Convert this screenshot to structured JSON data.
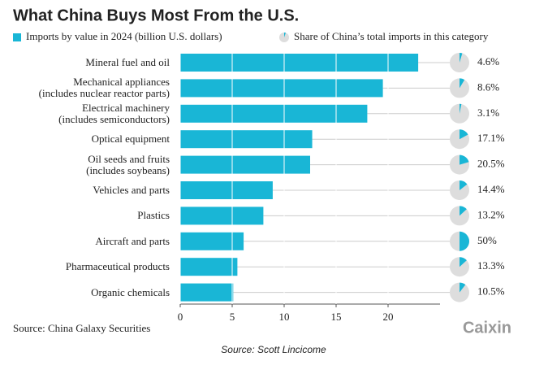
{
  "chart_data": {
    "type": "bar",
    "title": "What China Buys Most From the U.S.",
    "categories": [
      "Mineral fuel and oil",
      "Mechanical appliances\n(includes nuclear reactor parts)",
      "Electrical machinery\n(includes semiconductors)",
      "Optical equipment",
      "Oil seeds and fruits\n(includes soybeans)",
      "Vehicles and parts",
      "Plastics",
      "Aircraft and parts",
      "Pharmaceutical products",
      "Organic chemicals"
    ],
    "series": [
      {
        "name": "Imports by value in 2024 (billion U.S. dollars)",
        "color": "#19b6d6",
        "values": [
          22.9,
          19.5,
          18.0,
          12.7,
          12.5,
          8.9,
          8.0,
          6.1,
          5.5,
          5.1
        ]
      },
      {
        "name": "Share of China’s total imports in this category",
        "type": "pie",
        "color": "#19b6d6",
        "values": [
          4.6,
          8.6,
          3.1,
          17.1,
          20.5,
          14.4,
          13.2,
          50,
          13.3,
          10.5
        ],
        "value_labels": [
          "4.6%",
          "8.6%",
          "3.1%",
          "17.1%",
          "20.5%",
          "14.4%",
          "13.2%",
          "50%",
          "13.3%",
          "10.5%"
        ]
      }
    ],
    "xlim": [
      0,
      25
    ],
    "xticks": [
      0,
      5,
      10,
      15,
      20
    ],
    "grid": true,
    "source": "Source: China Galaxy Securities"
  },
  "logo": "Caixin",
  "caption": "Source: Scott Lincicome"
}
